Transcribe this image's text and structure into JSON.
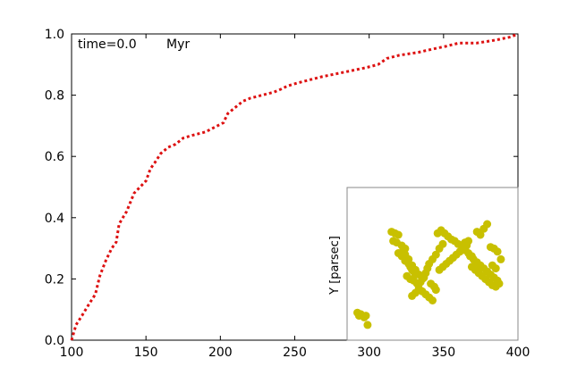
{
  "chart_data": [
    {
      "type": "line",
      "annotation": {
        "time": "time=0.0",
        "unit": "Myr"
      },
      "xlim": [
        100,
        400
      ],
      "ylim": [
        0.0,
        1.0
      ],
      "x_ticks": [
        100,
        150,
        200,
        250,
        300,
        350,
        400
      ],
      "x_tick_labels": [
        "100",
        "150",
        "200",
        "250",
        "300",
        "350",
        "400"
      ],
      "y_ticks": [
        0.0,
        0.2,
        0.4,
        0.6,
        0.8,
        1.0
      ],
      "y_tick_labels": [
        "0.0",
        "0.2",
        "0.4",
        "0.6",
        "0.8",
        "1.0"
      ],
      "series": [
        {
          "color": "#dd1111",
          "line_style": "dotted",
          "x": [
            100,
            103,
            107,
            112,
            116,
            119,
            123,
            127,
            130,
            132,
            137,
            142,
            146,
            150,
            153,
            156,
            160,
            165,
            170,
            175,
            182,
            190,
            198,
            202,
            205,
            210,
            215,
            220,
            228,
            236,
            241,
            245,
            252,
            260,
            268,
            278,
            288,
            298,
            306,
            312,
            320,
            333,
            342,
            352,
            360,
            372,
            385,
            395,
            400
          ],
          "y": [
            0.0,
            0.05,
            0.08,
            0.12,
            0.15,
            0.21,
            0.26,
            0.3,
            0.32,
            0.38,
            0.42,
            0.48,
            0.5,
            0.52,
            0.56,
            0.58,
            0.61,
            0.63,
            0.64,
            0.66,
            0.67,
            0.68,
            0.7,
            0.71,
            0.74,
            0.76,
            0.78,
            0.79,
            0.8,
            0.81,
            0.82,
            0.83,
            0.84,
            0.85,
            0.86,
            0.87,
            0.88,
            0.89,
            0.9,
            0.92,
            0.93,
            0.94,
            0.95,
            0.96,
            0.97,
            0.97,
            0.98,
            0.99,
            1.0
          ]
        }
      ]
    },
    {
      "type": "scatter",
      "inset": true,
      "ylabel": "Y [parsec]",
      "xlim": [
        0,
        10
      ],
      "ylim": [
        0,
        10
      ],
      "series": [
        {
          "color": "#c8c000",
          "x": [
            0.6,
            0.7,
            0.8,
            1.0,
            1.1,
            1.2,
            2.6,
            2.8,
            3.0,
            2.7,
            2.9,
            3.2,
            3.4,
            3.0,
            3.2,
            3.4,
            3.6,
            3.7,
            3.8,
            3.9,
            4.0,
            3.5,
            3.7,
            3.9,
            4.1,
            4.3,
            4.4,
            4.2,
            4.0,
            3.8,
            3.6,
            3.4,
            3.3,
            4.5,
            4.6,
            4.7,
            4.8,
            5.0,
            5.2,
            5.4,
            5.6,
            5.3,
            5.5,
            5.7,
            5.9,
            6.1,
            6.3,
            6.5,
            6.7,
            6.9,
            7.1,
            7.0,
            6.8,
            6.6,
            6.4,
            6.2,
            6.0,
            5.8,
            5.6,
            5.4,
            7.2,
            7.4,
            7.6,
            7.8,
            8.0,
            8.2,
            8.4,
            8.6,
            8.8,
            8.9,
            8.7,
            8.5,
            8.3,
            8.1,
            7.9,
            7.7,
            7.5,
            7.3,
            8.0,
            8.2,
            7.6,
            7.8,
            6.9,
            7.1,
            7.3,
            4.8,
            5.0,
            4.6,
            4.4,
            4.2,
            4.0,
            3.8,
            5.2,
            5.1,
            4.9,
            8.4,
            8.6,
            8.8,
            9.0,
            8.5,
            8.7
          ],
          "y": [
            1.8,
            1.6,
            1.7,
            1.5,
            1.6,
            1.0,
            7.1,
            7.0,
            6.9,
            6.5,
            6.4,
            6.2,
            6.0,
            5.7,
            5.5,
            5.2,
            5.0,
            4.8,
            4.6,
            4.5,
            4.3,
            4.2,
            4.0,
            3.9,
            3.7,
            3.8,
            4.0,
            4.3,
            4.6,
            4.9,
            5.3,
            5.6,
            5.9,
            4.1,
            4.4,
            4.7,
            5.0,
            5.3,
            5.6,
            6.0,
            6.3,
            7.0,
            7.2,
            7.0,
            6.8,
            6.6,
            6.5,
            6.3,
            6.2,
            6.4,
            6.5,
            6.2,
            6.0,
            5.8,
            5.6,
            5.4,
            5.2,
            5.0,
            4.8,
            4.6,
            5.5,
            5.3,
            5.1,
            4.9,
            4.7,
            4.5,
            4.3,
            4.1,
            3.9,
            3.7,
            3.5,
            3.6,
            3.8,
            4.0,
            4.2,
            4.4,
            4.6,
            4.8,
            7.3,
            7.6,
            7.1,
            6.9,
            5.9,
            5.7,
            5.5,
            2.8,
            2.6,
            3.0,
            3.2,
            3.4,
            3.1,
            2.9,
            3.3,
            3.5,
            3.7,
            6.1,
            6.0,
            5.8,
            5.3,
            4.9,
            4.7
          ]
        }
      ]
    }
  ]
}
